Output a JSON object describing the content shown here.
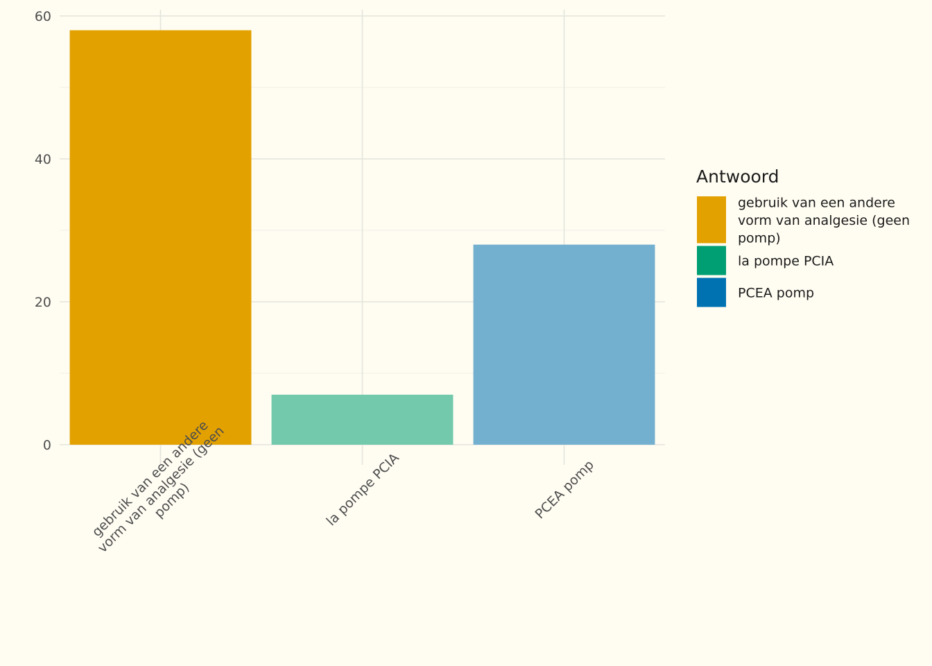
{
  "chart_data": {
    "type": "bar",
    "categories": [
      [
        "gebruik van een andere",
        "vorm van analgesie (geen",
        "pomp)"
      ],
      [
        "la pompe PCIA"
      ],
      [
        "PCEA pomp"
      ]
    ],
    "values": [
      58,
      7,
      28
    ],
    "bar_colors": [
      "#e3a100",
      "#73c9ac",
      "#73afcf"
    ],
    "ylim": [
      0,
      60
    ],
    "yticks": [
      0,
      20,
      40,
      60
    ],
    "grid": true,
    "xlabel": "",
    "ylabel": "",
    "title": "",
    "legend": {
      "title": "Antwoord",
      "position": "right",
      "items": [
        {
          "label": [
            "gebruik van een andere",
            "vorm van analgesie (geen",
            "pomp)"
          ],
          "color": "#e3a100"
        },
        {
          "label": [
            "la pompe PCIA"
          ],
          "color": "#009e73"
        },
        {
          "label": [
            "PCEA pomp"
          ],
          "color": "#0072b2"
        }
      ]
    }
  }
}
